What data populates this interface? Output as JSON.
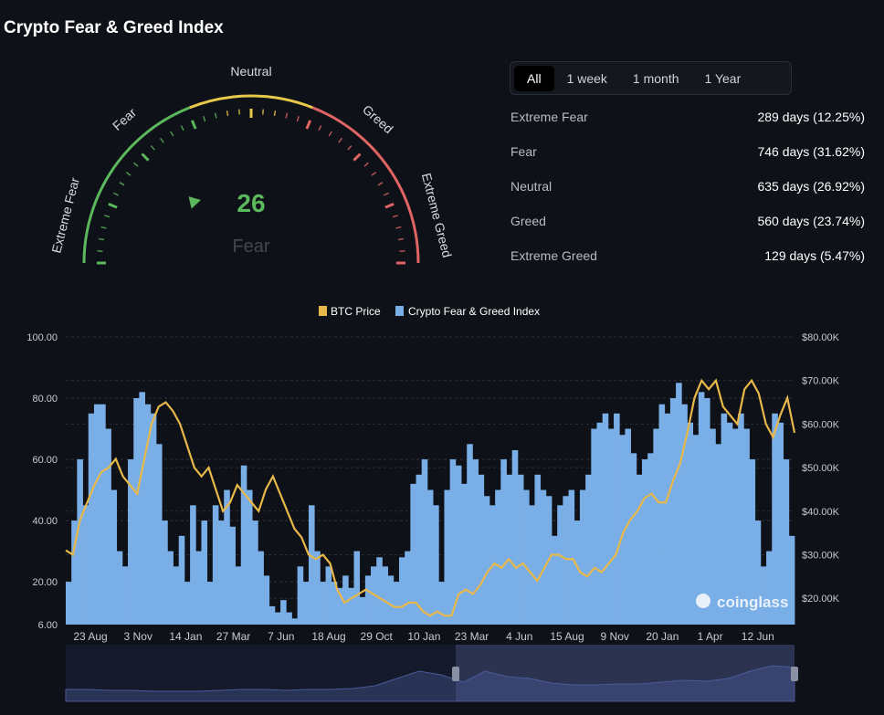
{
  "title": "Crypto Fear & Greed Index",
  "gauge": {
    "value": "26",
    "label": "Fear",
    "zones": [
      "Extreme Fear",
      "Fear",
      "Neutral",
      "Greed",
      "Extreme Greed"
    ],
    "colors": {
      "fear": "#5cb85c",
      "neutral": "#e8c84a",
      "greed": "#e06464"
    }
  },
  "tabs": [
    {
      "label": "All",
      "active": true
    },
    {
      "label": "1 week"
    },
    {
      "label": "1 month"
    },
    {
      "label": "1 Year"
    }
  ],
  "stats": [
    {
      "label": "Extreme Fear",
      "value": "289 days (12.25%)"
    },
    {
      "label": "Fear",
      "value": "746 days (31.62%)"
    },
    {
      "label": "Neutral",
      "value": "635 days (26.92%)"
    },
    {
      "label": "Greed",
      "value": "560 days (23.74%)"
    },
    {
      "label": "Extreme Greed",
      "value": "129 days (5.47%)"
    }
  ],
  "chart_data": {
    "type": "bar+line",
    "legend": [
      "BTC Price",
      "Crypto Fear & Greed Index"
    ],
    "legend_position": "top",
    "colors": {
      "btc": "#e8b84a",
      "index": "#7aaee6"
    },
    "left_axis": {
      "ticks": [
        "100.00",
        "80.00",
        "60.00",
        "40.00",
        "20.00",
        "6.00"
      ],
      "range": [
        6,
        100
      ]
    },
    "right_axis": {
      "ticks": [
        "$80.00K",
        "$70.00K",
        "$60.00K",
        "$50.00K",
        "$40.00K",
        "$30.00K",
        "$20.00K"
      ],
      "range_k": [
        14,
        80
      ]
    },
    "x_ticks": [
      "23 Aug",
      "3 Nov",
      "14 Jan",
      "27 Mar",
      "7 Jun",
      "18 Aug",
      "29 Oct",
      "10 Jan",
      "23 Mar",
      "4 Jun",
      "15 Aug",
      "9 Nov",
      "20 Jan",
      "1 Apr",
      "12 Jun"
    ],
    "grid": true,
    "watermark": "coinglass",
    "index_series": [
      20,
      40,
      60,
      45,
      75,
      78,
      78,
      70,
      50,
      30,
      25,
      60,
      80,
      82,
      78,
      75,
      65,
      40,
      30,
      25,
      35,
      20,
      45,
      30,
      40,
      20,
      45,
      40,
      50,
      38,
      25,
      58,
      50,
      40,
      30,
      22,
      12,
      10,
      14,
      10,
      8,
      25,
      20,
      45,
      30,
      20,
      25,
      20,
      18,
      22,
      18,
      30,
      15,
      22,
      25,
      28,
      25,
      22,
      20,
      28,
      30,
      52,
      55,
      60,
      50,
      45,
      20,
      50,
      60,
      58,
      52,
      65,
      60,
      55,
      48,
      45,
      50,
      60,
      55,
      63,
      55,
      50,
      45,
      55,
      50,
      48,
      35,
      45,
      48,
      50,
      40,
      50,
      55,
      70,
      72,
      75,
      70,
      75,
      68,
      70,
      62,
      55,
      60,
      62,
      70,
      78,
      75,
      80,
      85,
      78,
      72,
      68,
      82,
      80,
      70,
      65,
      75,
      72,
      70,
      75,
      70,
      60,
      40,
      25,
      30,
      75,
      72,
      60,
      35
    ],
    "btc_price_k": [
      31,
      30,
      38,
      42,
      46,
      49,
      50,
      52,
      48,
      46,
      44,
      52,
      60,
      64,
      65,
      63,
      60,
      55,
      50,
      48,
      50,
      45,
      40,
      42,
      46,
      44,
      42,
      40,
      45,
      48,
      44,
      40,
      36,
      34,
      30,
      29,
      30,
      28,
      22,
      19,
      20,
      21,
      22,
      21,
      20,
      19,
      18,
      18,
      19,
      19,
      17,
      16,
      17,
      16,
      16,
      21,
      22,
      21,
      23,
      26,
      28,
      27,
      29,
      27,
      28,
      26,
      24,
      27,
      30,
      30,
      29,
      29,
      26,
      25,
      27,
      26,
      28,
      30,
      35,
      38,
      40,
      43,
      44,
      42,
      42,
      47,
      51,
      58,
      66,
      70,
      68,
      70,
      64,
      62,
      60,
      68,
      70,
      67,
      60,
      57,
      62,
      66,
      58
    ],
    "navigator_series": [
      10,
      10,
      9,
      9,
      8,
      8,
      8,
      9,
      10,
      10,
      9,
      10,
      10,
      11,
      14,
      22,
      30,
      26,
      18,
      30,
      24,
      22,
      17,
      15,
      15,
      16,
      16,
      18,
      20,
      19,
      22,
      30,
      36,
      34
    ]
  }
}
